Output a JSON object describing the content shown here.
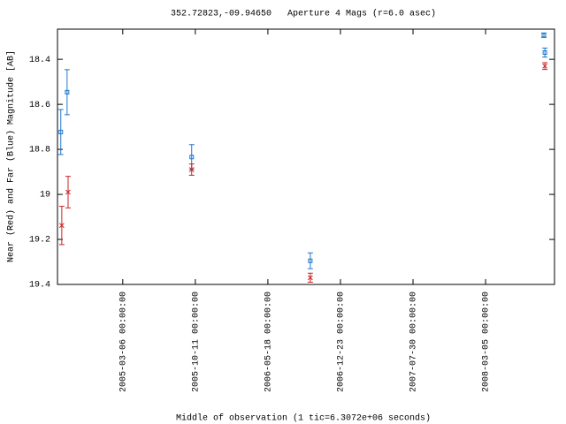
{
  "chart_data": {
    "type": "scatter",
    "title": "352.72823,-09.94650   Aperture 4 Mags (r=6.0 asec)",
    "x_label": "Middle of observation (1 tic=6.3072e+06 seconds)",
    "y_label": "Near (Red) and Far (Blue) Magnitude [AB]",
    "xlim": [
      "2004-08-21 00:00:00",
      "2008-09-29 00:00:00"
    ],
    "xticks": [
      "2005-03-06 00:00:00",
      "2005-10-11 00:00:00",
      "2006-05-18 00:00:00",
      "2006-12-23 00:00:00",
      "2007-07-30 00:00:00",
      "2008-03-05 00:00:00"
    ],
    "ylim": [
      19.4,
      18.266
    ],
    "yticks": [
      18.4,
      18.6,
      18.8,
      19,
      19.2,
      19.4
    ],
    "series": [
      {
        "name": "Far",
        "color": "#1f77cc",
        "marker": "square",
        "x": [
          "2004-08-31 00:00:00",
          "2004-09-19 00:00:00",
          "2005-09-30 00:00:00",
          "2006-09-23 00:00:00",
          "2008-08-28 00:00:00",
          "2008-08-31 00:00:00"
        ],
        "values": [
          18.723,
          18.546,
          18.834,
          19.295,
          18.293,
          18.37
        ],
        "errors": [
          0.1,
          0.1,
          0.055,
          0.035,
          0.01,
          0.02
        ]
      },
      {
        "name": "Near",
        "color": "#cc2222",
        "marker": "cross",
        "x": [
          "2004-09-03 00:00:00",
          "2004-09-22 00:00:00",
          "2005-09-30 00:00:00",
          "2006-09-23 00:00:00",
          "2008-08-31 00:00:00"
        ],
        "values": [
          19.138,
          18.99,
          18.89,
          19.37,
          18.43
        ],
        "errors": [
          0.085,
          0.07,
          0.025,
          0.02,
          0.015
        ]
      }
    ]
  }
}
